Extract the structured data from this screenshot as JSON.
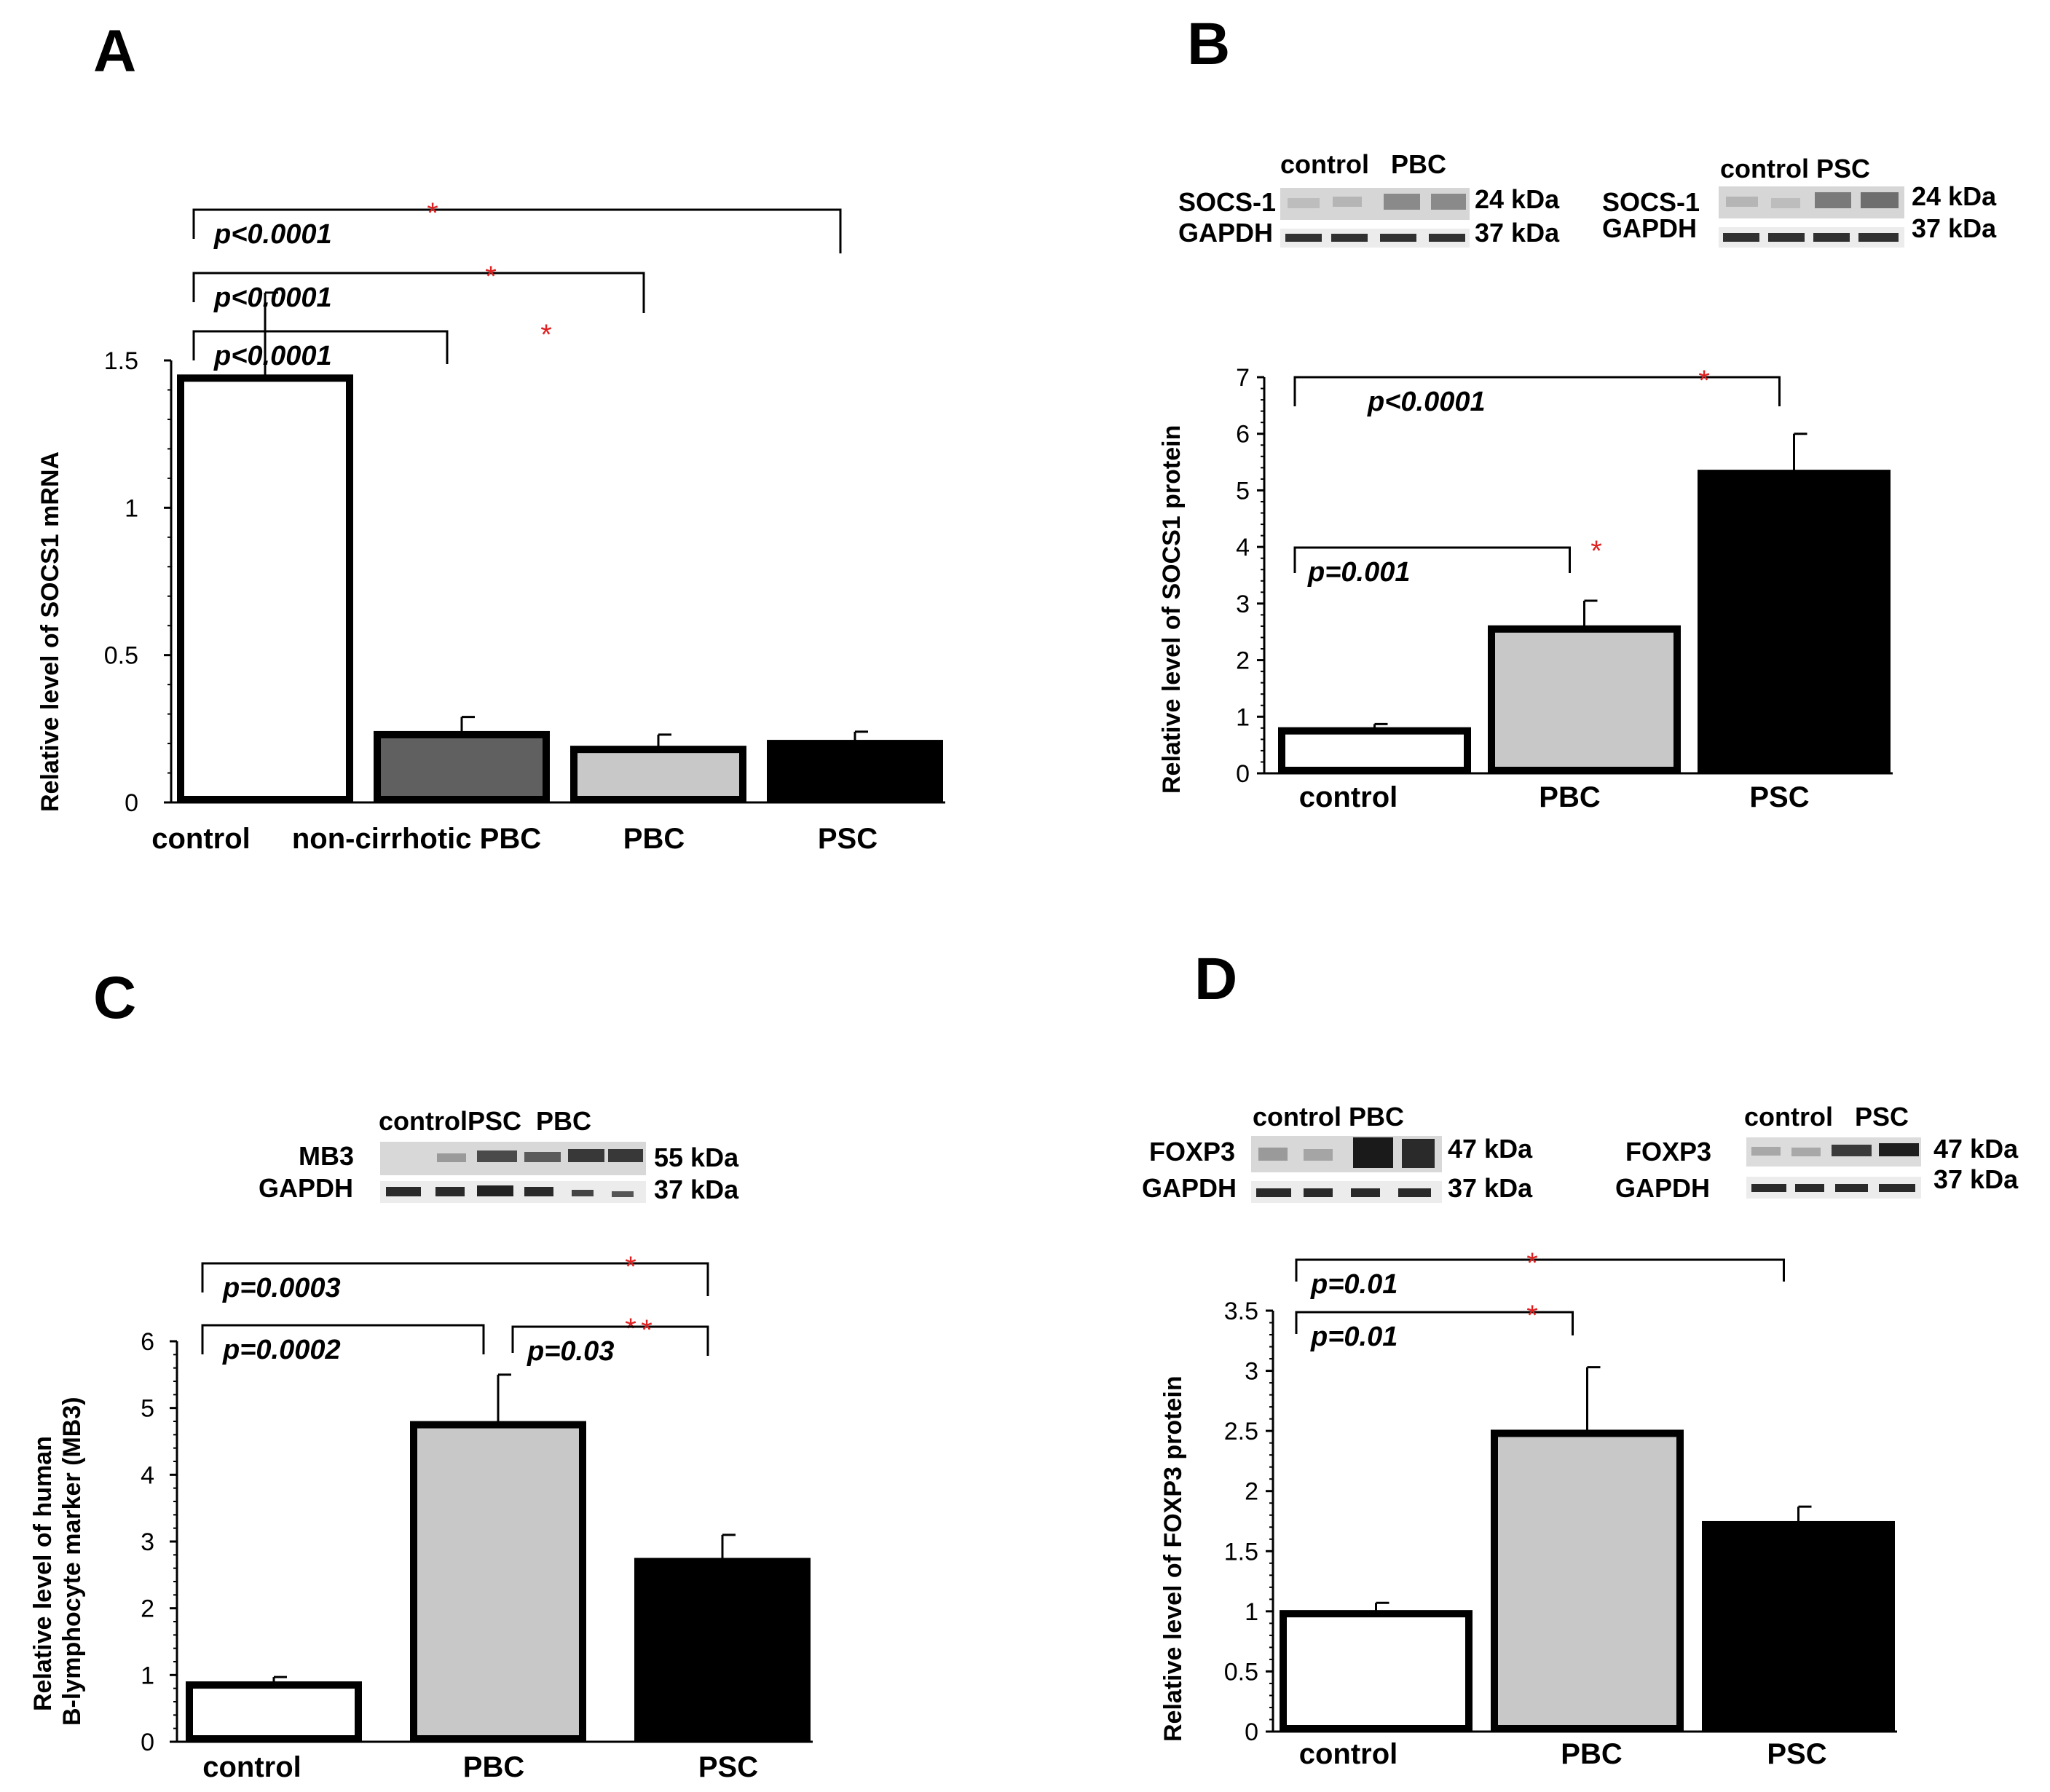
{
  "colors": {
    "white_bar": "#ffffff",
    "dark_grey_bar": "#606060",
    "light_grey_bar": "#c8c8c8",
    "black_bar": "#000000",
    "star": "#e02020"
  },
  "chart_data": [
    {
      "panel": "A",
      "type": "bar",
      "ylabel": "Relative level of SOCS1  mRNA",
      "ylim": [
        0,
        1.5
      ],
      "yticks": [
        "0",
        "0.5",
        "1",
        "1.5"
      ],
      "categories": [
        "control",
        "non-cirrhotic PBC",
        "PBC",
        "PSC"
      ],
      "values": [
        1.44,
        0.23,
        0.18,
        0.2
      ],
      "errors": [
        0.29,
        0.06,
        0.05,
        0.04
      ],
      "fills": [
        "white_bar",
        "dark_grey_bar",
        "light_grey_bar",
        "black_bar"
      ],
      "significance": [
        {
          "from": 0,
          "to": 3,
          "label": "p<0.0001",
          "star": "*"
        },
        {
          "from": 0,
          "to": 2,
          "label": "p<0.0001",
          "star": "*"
        },
        {
          "from": 0,
          "to": 1,
          "label": "p<0.0001",
          "star": "*"
        }
      ]
    },
    {
      "panel": "B",
      "type": "bar",
      "ylabel": "Relative level of SOCS1 protein",
      "ylim": [
        0,
        7
      ],
      "yticks": [
        "0",
        "1",
        "2",
        "3",
        "4",
        "5",
        "6",
        "7"
      ],
      "categories": [
        "control",
        "PBC",
        "PSC"
      ],
      "values": [
        0.75,
        2.55,
        5.3
      ],
      "errors": [
        0.12,
        0.5,
        0.7
      ],
      "fills": [
        "white_bar",
        "light_grey_bar",
        "black_bar"
      ],
      "significance": [
        {
          "from": 0,
          "to": 2,
          "label": "p<0.0001",
          "star": "*"
        },
        {
          "from": 0,
          "to": 1,
          "label": "p=0.001",
          "star": "*"
        }
      ],
      "blots": [
        {
          "groups": "control   PBC",
          "row1": "SOCS-1",
          "row1_kda": "24 kDa",
          "row2": "GAPDH",
          "row2_kda": "37 kDa"
        },
        {
          "groups": "control PSC",
          "row1": "SOCS-1",
          "row1_kda": "24 kDa",
          "row2": "GAPDH",
          "row2_kda": "37 kDa"
        }
      ]
    },
    {
      "panel": "C",
      "type": "bar",
      "ylabel": "Relative level of human\nB-lymphocyte marker (MB3)",
      "ylabel_line1": "Relative level of human",
      "ylabel_line2": "B-lymphocyte marker (MB3)",
      "ylim": [
        0,
        6
      ],
      "yticks": [
        "0",
        "1",
        "2",
        "3",
        "4",
        "5",
        "6"
      ],
      "categories": [
        "control",
        "PBC",
        "PSC"
      ],
      "values": [
        0.85,
        4.75,
        2.7
      ],
      "errors": [
        0.12,
        0.75,
        0.4
      ],
      "fills": [
        "white_bar",
        "light_grey_bar",
        "black_bar"
      ],
      "significance": [
        {
          "from": 0,
          "to": 2,
          "label": "p=0.0003",
          "star": "*"
        },
        {
          "from": 0,
          "to": 1,
          "label": "p=0.0002",
          "star": "*"
        },
        {
          "from": 1,
          "to": 2,
          "label": "p=0.03",
          "star": "*"
        }
      ],
      "blots": [
        {
          "groups": "controlPSC  PBC",
          "row1": "MB3",
          "row1_kda": "55 kDa",
          "row2": "GAPDH",
          "row2_kda": "37 kDa"
        }
      ]
    },
    {
      "panel": "D",
      "type": "bar",
      "ylabel": "Relative level of FOXP3 protein",
      "ylim": [
        0,
        3.5
      ],
      "yticks": [
        "0",
        "0.5",
        "1",
        "1.5",
        "2",
        "2.5",
        "3",
        "3.5"
      ],
      "categories": [
        "control",
        "PBC",
        "PSC"
      ],
      "values": [
        0.98,
        2.48,
        1.72
      ],
      "errors": [
        0.09,
        0.55,
        0.15
      ],
      "fills": [
        "white_bar",
        "light_grey_bar",
        "black_bar"
      ],
      "significance": [
        {
          "from": 0,
          "to": 2,
          "label": "p=0.01",
          "star": "*"
        },
        {
          "from": 0,
          "to": 1,
          "label": "p=0.01",
          "star": "*"
        }
      ],
      "blots": [
        {
          "groups": "control PBC",
          "row1": "FOXP3",
          "row1_kda": "47 kDa",
          "row2": "GAPDH",
          "row2_kda": "37 kDa"
        },
        {
          "groups": "control   PSC",
          "row1": "FOXP3",
          "row1_kda": "47 kDa",
          "row2": "GAPDH",
          "row2_kda": "37 kDa"
        }
      ]
    }
  ]
}
